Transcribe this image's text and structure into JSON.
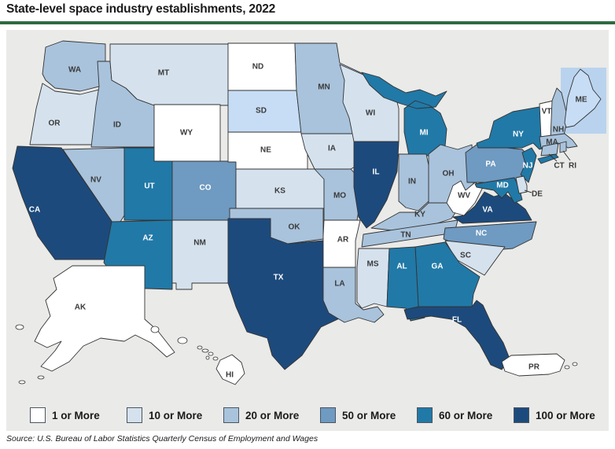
{
  "title": "State-level space industry establishments, 2022",
  "source": "Source: U.S. Bureau of Labor Statistics Quarterly Census of Employment and Wages",
  "colors": {
    "title_rule": "#2e6b41",
    "panel_background": "#eaeae8",
    "state_border": "#333333",
    "label_dark": "#3a3a3a",
    "label_light": "#ffffff"
  },
  "legend": {
    "items": [
      {
        "label": "1 or More",
        "color": "#ffffff"
      },
      {
        "label": "10 or More",
        "color": "#d5e2ee"
      },
      {
        "label": "20 or More",
        "color": "#a9c3dc"
      },
      {
        "label": "50 or More",
        "color": "#6f9ac1"
      },
      {
        "label": "60 or More",
        "color": "#2179a7"
      },
      {
        "label": "100 or More",
        "color": "#1d4a7c"
      }
    ]
  },
  "chart_data": {
    "type": "choropleth-map",
    "title": "State-level space industry establishments, 2022",
    "year": "2022",
    "unit": "establishments",
    "legend_position": "bottom",
    "categories": [
      "1 or More",
      "10 or More",
      "20 or More",
      "50 or More",
      "60 or More",
      "100 or More"
    ],
    "category_colors": {
      "1 or More": "#ffffff",
      "10 or More": "#d5e2ee",
      "20 or More": "#a9c3dc",
      "50 or More": "#6f9ac1",
      "60 or More": "#2179a7",
      "100 or More": "#1d4a7c"
    },
    "highlight": {
      "note": "SD and ME appear highlighted (hover/selected state)",
      "fill": "#c7ddf5",
      "maine_box_fill": "#b9d3ee"
    },
    "states": [
      {
        "abbr": "WA",
        "category": "20 or More"
      },
      {
        "abbr": "OR",
        "category": "10 or More"
      },
      {
        "abbr": "CA",
        "category": "100 or More"
      },
      {
        "abbr": "NV",
        "category": "20 or More"
      },
      {
        "abbr": "ID",
        "category": "20 or More"
      },
      {
        "abbr": "MT",
        "category": "10 or More"
      },
      {
        "abbr": "WY",
        "category": "1 or More"
      },
      {
        "abbr": "UT",
        "category": "60 or More"
      },
      {
        "abbr": "CO",
        "category": "50 or More"
      },
      {
        "abbr": "AZ",
        "category": "60 or More"
      },
      {
        "abbr": "NM",
        "category": "10 or More"
      },
      {
        "abbr": "ND",
        "category": "1 or More"
      },
      {
        "abbr": "SD",
        "category": "10 or More",
        "highlighted": true
      },
      {
        "abbr": "NE",
        "category": "1 or More"
      },
      {
        "abbr": "KS",
        "category": "10 or More"
      },
      {
        "abbr": "OK",
        "category": "20 or More"
      },
      {
        "abbr": "TX",
        "category": "100 or More"
      },
      {
        "abbr": "MN",
        "category": "20 or More"
      },
      {
        "abbr": "IA",
        "category": "10 or More"
      },
      {
        "abbr": "MO",
        "category": "20 or More"
      },
      {
        "abbr": "AR",
        "category": "1 or More"
      },
      {
        "abbr": "LA",
        "category": "20 or More"
      },
      {
        "abbr": "MS",
        "category": "10 or More"
      },
      {
        "abbr": "WI",
        "category": "10 or More"
      },
      {
        "abbr": "IL",
        "category": "100 or More"
      },
      {
        "abbr": "MI",
        "category": "60 or More"
      },
      {
        "abbr": "IN",
        "category": "20 or More"
      },
      {
        "abbr": "OH",
        "category": "20 or More"
      },
      {
        "abbr": "KY",
        "category": "20 or More"
      },
      {
        "abbr": "TN",
        "category": "20 or More"
      },
      {
        "abbr": "WV",
        "category": "1 or More"
      },
      {
        "abbr": "VA",
        "category": "100 or More"
      },
      {
        "abbr": "NC",
        "category": "50 or More"
      },
      {
        "abbr": "SC",
        "category": "10 or More"
      },
      {
        "abbr": "GA",
        "category": "60 or More"
      },
      {
        "abbr": "AL",
        "category": "60 or More"
      },
      {
        "abbr": "FL",
        "category": "100 or More"
      },
      {
        "abbr": "PA",
        "category": "50 or More"
      },
      {
        "abbr": "NY",
        "category": "60 or More"
      },
      {
        "abbr": "NJ",
        "category": "60 or More"
      },
      {
        "abbr": "MD",
        "category": "60 or More"
      },
      {
        "abbr": "DE",
        "category": "10 or More"
      },
      {
        "abbr": "VT",
        "category": "1 or More"
      },
      {
        "abbr": "NH",
        "category": "20 or More"
      },
      {
        "abbr": "MA",
        "category": "20 or More"
      },
      {
        "abbr": "CT",
        "category": "20 or More"
      },
      {
        "abbr": "RI",
        "category": "20 or More"
      },
      {
        "abbr": "ME",
        "category": "10 or More",
        "highlighted": true
      },
      {
        "abbr": "AK",
        "category": "1 or More"
      },
      {
        "abbr": "HI",
        "category": "1 or More"
      },
      {
        "abbr": "PR",
        "category": "1 or More"
      }
    ]
  }
}
